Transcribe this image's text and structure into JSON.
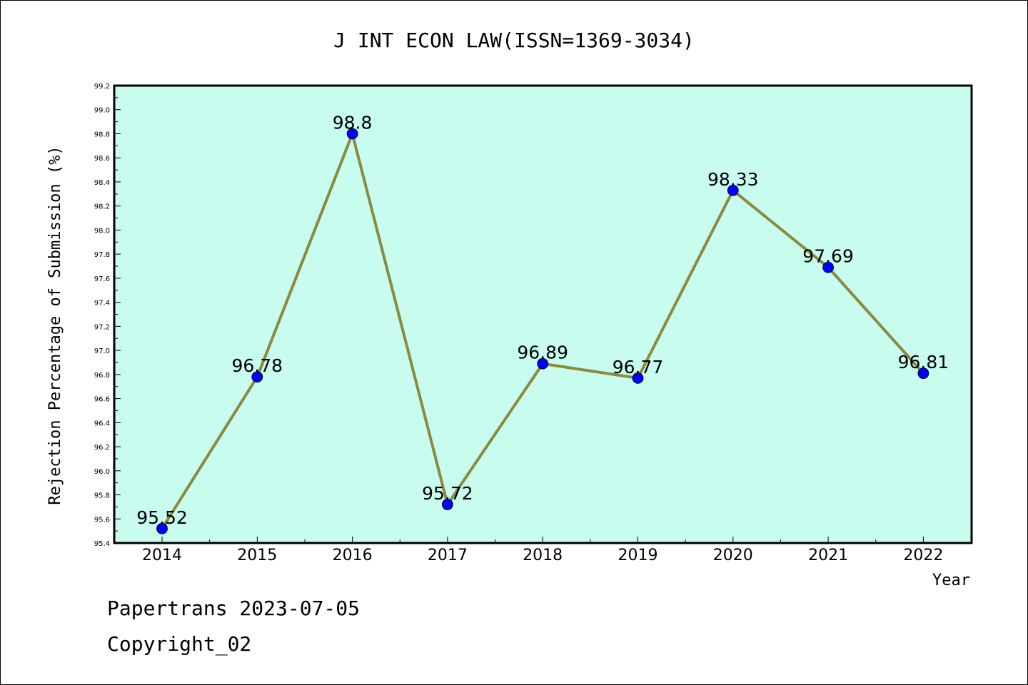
{
  "chart_data": {
    "type": "line",
    "title": "J INT ECON LAW(ISSN=1369-3034)",
    "xlabel": "Year",
    "ylabel": "Rejection Percentage of Submission (%)",
    "categories": [
      "2014",
      "2015",
      "2016",
      "2017",
      "2018",
      "2019",
      "2020",
      "2021",
      "2022"
    ],
    "values": [
      95.52,
      96.78,
      98.8,
      95.72,
      96.89,
      96.77,
      98.33,
      97.69,
      96.81
    ],
    "data_labels": [
      "95.52",
      "96.78",
      "98.8",
      "95.72",
      "96.89",
      "96.77",
      "98.33",
      "97.69",
      "96.81"
    ],
    "ylim": [
      95.4,
      99.2
    ],
    "yticks": [
      "95.4",
      "95.6",
      "95.8",
      "96.0",
      "96.2",
      "96.4",
      "96.6",
      "96.8",
      "97.0",
      "97.2",
      "97.4",
      "97.6",
      "97.8",
      "98.0",
      "98.2",
      "98.4",
      "98.6",
      "98.8",
      "99.0",
      "99.2"
    ],
    "grid": false,
    "colors": {
      "plot_background": "#c8fcee",
      "line": "#8b8a3e",
      "marker": "#0000ff"
    }
  },
  "footer": {
    "line1": "Papertrans 2023-07-05",
    "line2": "Copyright_02"
  }
}
